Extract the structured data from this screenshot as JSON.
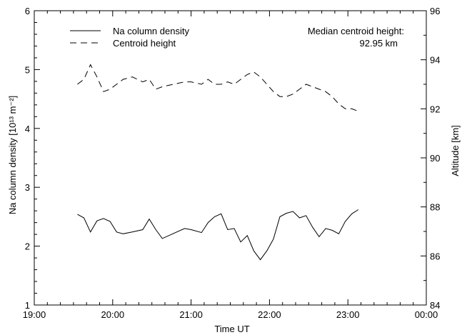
{
  "chart_data": {
    "type": "line",
    "xlabel": "Time UT",
    "ylabel_left": "Na column density [10¹³ m⁻²]",
    "ylabel_right": "Altitude [km]",
    "x_ticks": [
      "19:00",
      "20:00",
      "21:00",
      "22:00",
      "23:00",
      "00:00"
    ],
    "xlim_hours": [
      19,
      24
    ],
    "y_left": {
      "ylim": [
        1,
        6
      ],
      "ticks": [
        "1",
        "2",
        "3",
        "4",
        "5",
        "6"
      ]
    },
    "y_right": {
      "ylim": [
        84,
        96
      ],
      "ticks": [
        "84",
        "86",
        "88",
        "90",
        "92",
        "94",
        "96"
      ]
    },
    "legend": [
      "Na column density",
      "Centroid height"
    ],
    "annotation": {
      "line1": "Median centroid height:",
      "line2": "92.95  km"
    },
    "series": [
      {
        "name": "Na column density",
        "axis": "left",
        "style": "solid",
        "x": [
          "19:33",
          "19:38",
          "19:43",
          "19:48",
          "19:53",
          "19:58",
          "20:03",
          "20:08",
          "20:15",
          "20:23",
          "20:28",
          "20:33",
          "20:38",
          "20:55",
          "21:00",
          "21:08",
          "21:13",
          "21:18",
          "21:23",
          "21:28",
          "21:33",
          "21:38",
          "21:43",
          "21:48",
          "21:53",
          "21:58",
          "22:03",
          "22:08",
          "22:13",
          "22:18",
          "22:23",
          "22:28",
          "22:33",
          "22:38",
          "22:43",
          "22:48",
          "22:53",
          "22:58",
          "23:03",
          "23:08"
        ],
        "y": [
          2.54,
          2.48,
          2.24,
          2.43,
          2.47,
          2.42,
          2.24,
          2.21,
          2.24,
          2.28,
          2.46,
          2.28,
          2.13,
          2.3,
          2.28,
          2.23,
          2.4,
          2.5,
          2.55,
          2.28,
          2.3,
          2.07,
          2.18,
          1.92,
          1.77,
          1.92,
          2.12,
          2.5,
          2.56,
          2.59,
          2.48,
          2.52,
          2.32,
          2.16,
          2.3,
          2.27,
          2.21,
          2.42,
          2.55,
          2.62
        ]
      },
      {
        "name": "Centroid height",
        "axis": "right",
        "style": "dashed",
        "x": [
          "19:33",
          "19:38",
          "19:43",
          "19:48",
          "19:53",
          "19:58",
          "20:03",
          "20:08",
          "20:15",
          "20:23",
          "20:28",
          "20:33",
          "20:38",
          "20:55",
          "21:00",
          "21:08",
          "21:13",
          "21:18",
          "21:23",
          "21:28",
          "21:33",
          "21:38",
          "21:43",
          "21:48",
          "21:53",
          "21:58",
          "22:03",
          "22:08",
          "22:13",
          "22:18",
          "22:23",
          "22:28",
          "22:33",
          "22:38",
          "22:43",
          "22:48",
          "22:53",
          "22:58",
          "23:03",
          "23:08"
        ],
        "y": [
          93.0,
          93.2,
          93.8,
          93.3,
          92.7,
          92.8,
          93.0,
          93.2,
          93.3,
          93.1,
          93.2,
          92.8,
          92.9,
          93.1,
          93.1,
          93.0,
          93.2,
          93.0,
          93.0,
          93.1,
          93.0,
          93.2,
          93.4,
          93.5,
          93.3,
          93.0,
          92.7,
          92.5,
          92.5,
          92.6,
          92.8,
          93.0,
          92.9,
          92.8,
          92.7,
          92.5,
          92.2,
          92.0,
          92.0,
          91.9
        ]
      }
    ]
  }
}
